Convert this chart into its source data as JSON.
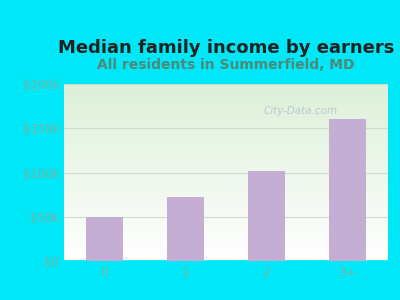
{
  "title": "Median family income by earners",
  "subtitle": "All residents in Summerfield, MD",
  "categories": [
    "0",
    "1",
    "2",
    "3+"
  ],
  "values": [
    50000,
    72000,
    102000,
    160000
  ],
  "bar_color": "#c4aed4",
  "title_color": "#222222",
  "subtitle_color": "#4a8a7a",
  "ytick_color": "#7ab0a0",
  "xtick_color": "#7ab0a0",
  "background_outer": "#00e8f8",
  "plot_bg_topleft": "#ddf0d8",
  "plot_bg_bottomright": "#ffffff",
  "ylim": [
    0,
    200000
  ],
  "yticks": [
    0,
    50000,
    100000,
    150000,
    200000
  ],
  "ytick_labels": [
    "$0",
    "$50k",
    "$100k",
    "$150k",
    "$200k"
  ],
  "watermark": "City-Data.com",
  "title_fontsize": 13,
  "subtitle_fontsize": 10,
  "grid_color": "#ccddcc",
  "bar_width": 0.45
}
